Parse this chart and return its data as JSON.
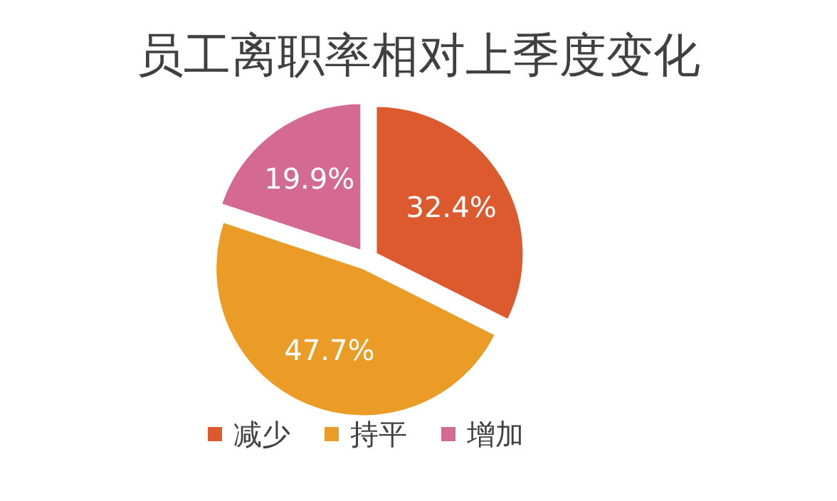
{
  "chart_data": {
    "type": "pie",
    "title": "员工离职率相对上季度变化",
    "categories": [
      "减少",
      "持平",
      "增加"
    ],
    "values": [
      32.4,
      47.7,
      19.9
    ],
    "colors": [
      "#dc5a2e",
      "#eb9c26",
      "#d46a8f"
    ],
    "value_labels": [
      "32.4%",
      "47.7%",
      "19.9%"
    ],
    "legend": "bottom"
  }
}
